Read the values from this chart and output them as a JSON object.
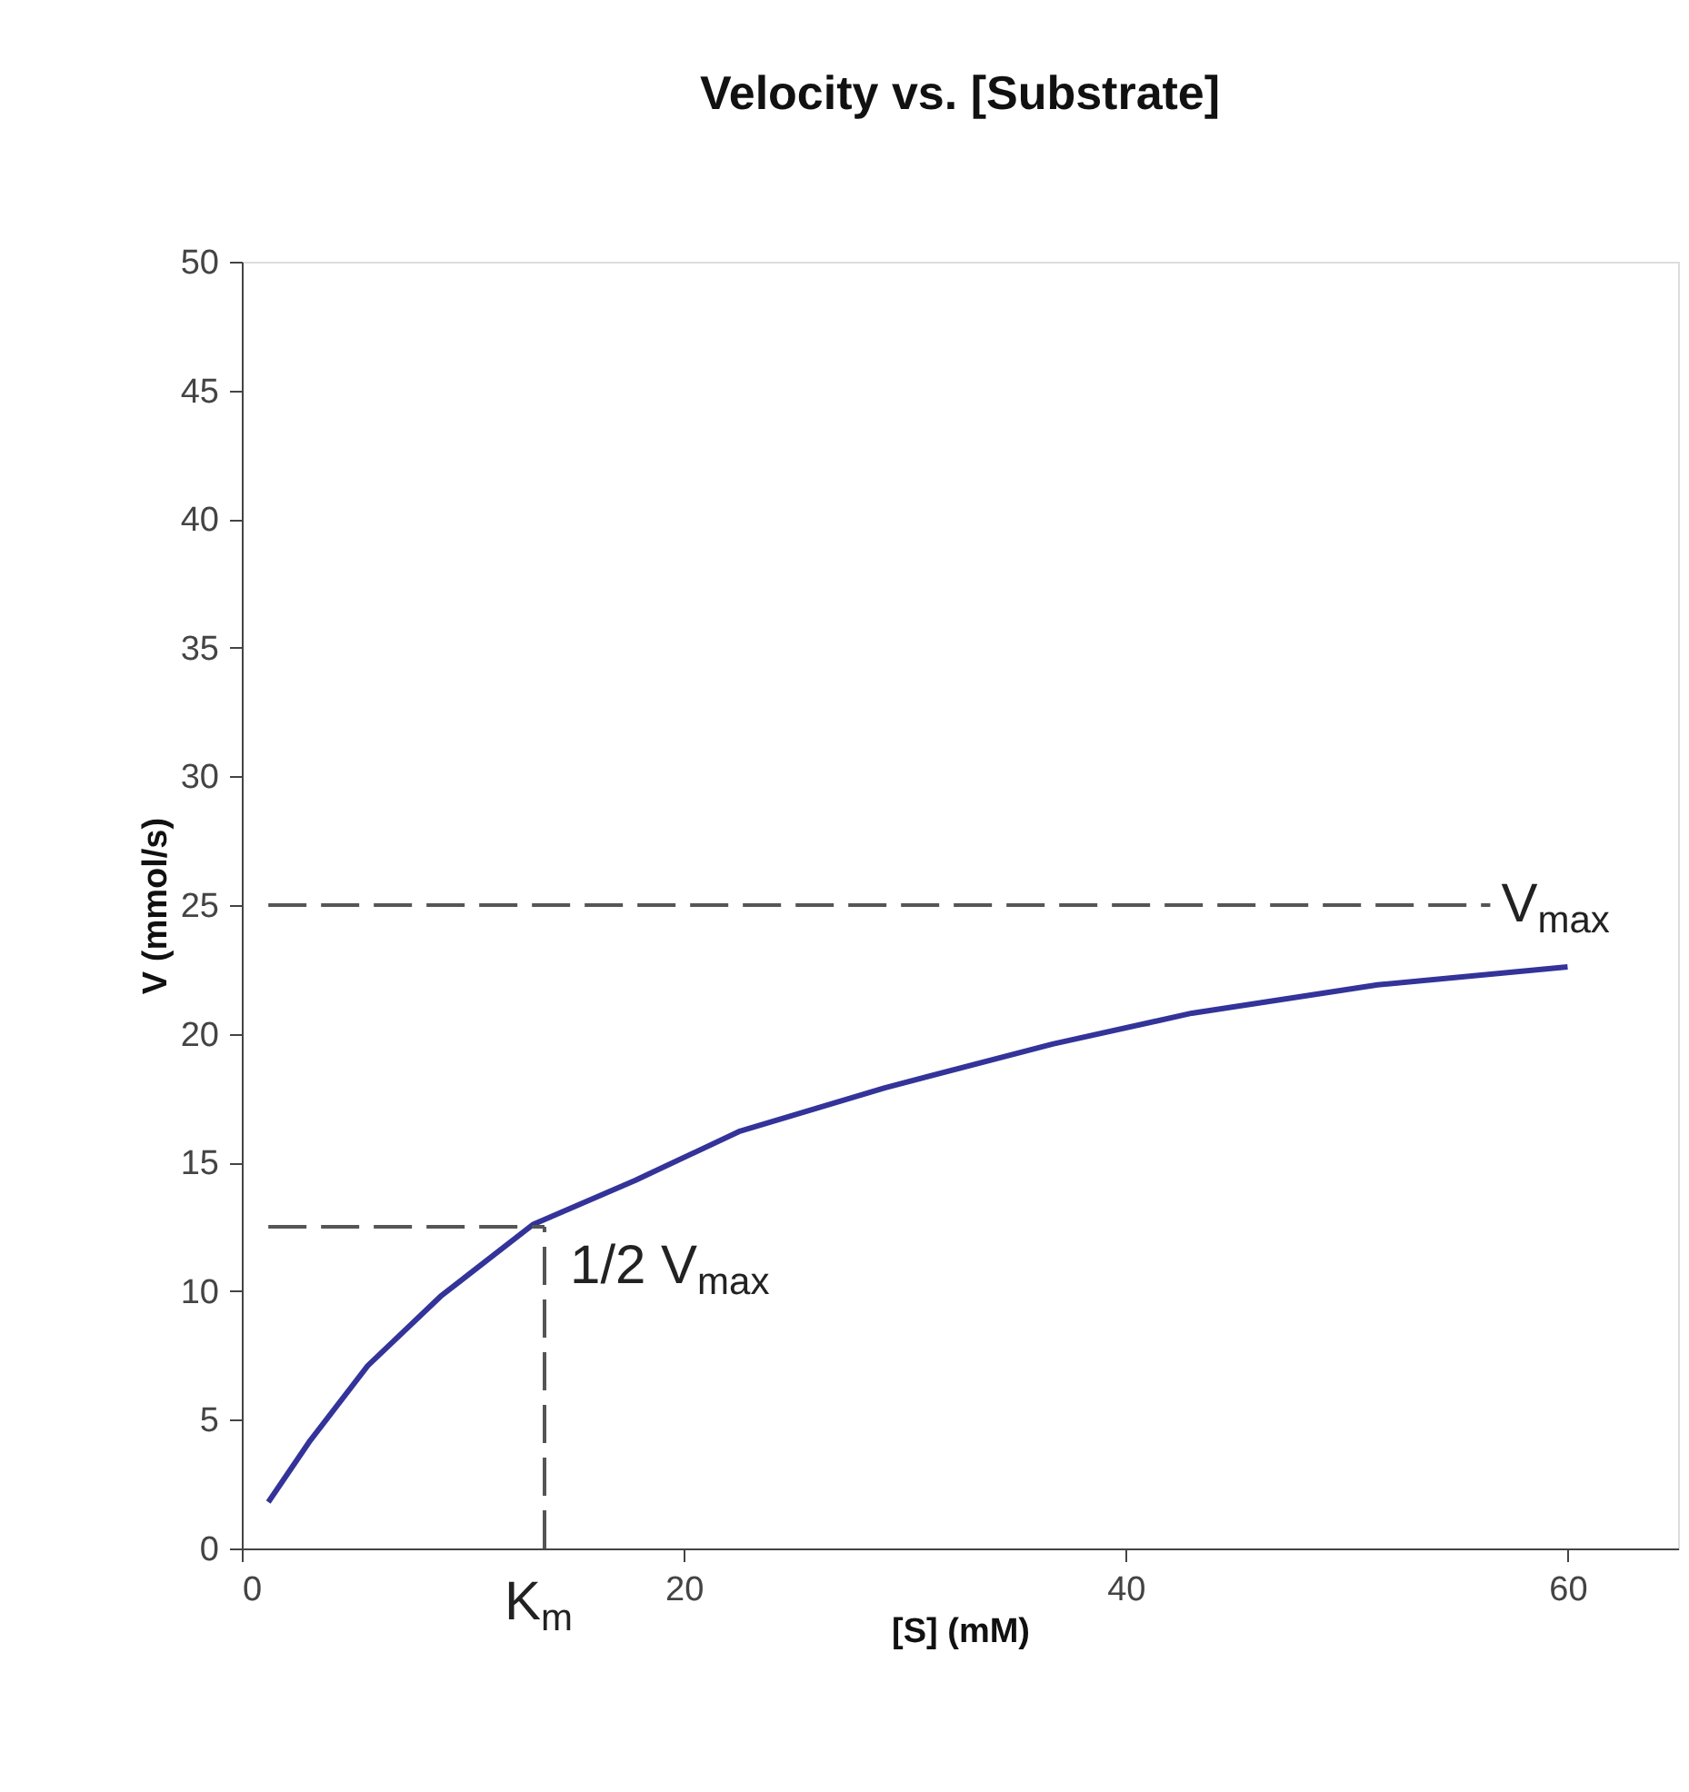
{
  "chart_data": {
    "type": "line",
    "title": "Velocity vs. [Substrate]",
    "xlabel": "[S] (mM)",
    "ylabel": "V (mmol/s)",
    "xlim": [
      0,
      65
    ],
    "xticks": [
      0,
      20,
      40,
      60
    ],
    "ylim": [
      0,
      50
    ],
    "yticks": [
      0,
      5,
      10,
      15,
      20,
      25,
      30,
      35,
      40,
      45,
      50
    ],
    "grid": false,
    "marker": "none",
    "series": [
      {
        "color": "#33339a",
        "line_style": "solid",
        "x": [
          1.2,
          3.1,
          5.7,
          9.0,
          13.2,
          17.8,
          22.5,
          29.1,
          36.7,
          43.0,
          51.4,
          60
        ],
        "values": [
          1.8,
          4.2,
          7.1,
          9.8,
          12.6,
          14.3,
          16.2,
          17.9,
          19.6,
          20.8,
          21.9,
          22.6
        ]
      },
      {
        "type": "line",
        "color": "#555555",
        "line_style": "dashed",
        "x": [
          1.2,
          56.5
        ],
        "values": [
          25,
          25
        ]
      },
      {
        "type": "line",
        "color": "#555555",
        "line_style": "dashed",
        "x": [
          1.2,
          13.7
        ],
        "values": [
          12.5,
          12.5
        ]
      },
      {
        "type": "line",
        "color": "#555555",
        "line_style": "dashed",
        "x": [
          13.7,
          13.7
        ],
        "values": [
          0,
          12.5
        ]
      }
    ],
    "annotations": [
      "V$_{max}$",
      "1/2 V$_{max}$",
      "K$_{m}$"
    ]
  }
}
